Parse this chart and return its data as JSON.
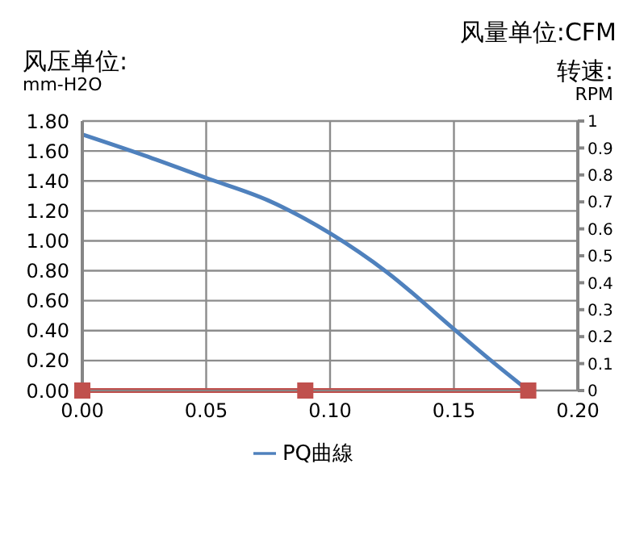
{
  "chart_data": {
    "type": "line",
    "xlabel": "风量单位:CFM",
    "ylabel": "风压单位:\nmm-H2O",
    "y2label": "转速:\nRPM",
    "series": [
      {
        "name": "PQ曲線",
        "color": "#4f81bd",
        "x": [
          0,
          0.025,
          0.05,
          0.075,
          0.1,
          0.123,
          0.15,
          0.165,
          0.18
        ],
        "values": [
          1.71,
          1.57,
          1.42,
          1.27,
          1.05,
          0.79,
          0.41,
          0.2,
          0
        ],
        "marker": "none"
      },
      {
        "color": "#c0504d",
        "axis": "y2",
        "x": [
          0,
          0.09,
          0.18
        ],
        "values": [
          0,
          0,
          0
        ],
        "marker": "square"
      }
    ],
    "xlim": [
      0,
      0.2
    ],
    "xticks": [
      {
        "value": 0,
        "label": "0.00"
      },
      {
        "value": 0.05,
        "label": "0.05"
      },
      {
        "value": 0.1,
        "label": "0.10"
      },
      {
        "value": 0.15,
        "label": "0.15"
      },
      {
        "value": 0.2,
        "label": "0.20"
      }
    ],
    "ylim": [
      0,
      1.8
    ],
    "yticks": [
      {
        "value": 0,
        "label": "0.00"
      },
      {
        "value": 0.2,
        "label": "0.20"
      },
      {
        "value": 0.4,
        "label": "0.40"
      },
      {
        "value": 0.6,
        "label": "0.60"
      },
      {
        "value": 0.8,
        "label": "0.80"
      },
      {
        "value": 1,
        "label": "1.00"
      },
      {
        "value": 1.2,
        "label": "1.20"
      },
      {
        "value": 1.4,
        "label": "1.40"
      },
      {
        "value": 1.6,
        "label": "1.60"
      },
      {
        "value": 1.8,
        "label": "1.80"
      }
    ],
    "y2lim": [
      0,
      1
    ],
    "y2ticks": [
      0,
      0.1,
      0.2,
      0.3,
      0.4,
      0.5,
      0.6,
      0.7,
      0.8,
      0.9,
      1
    ],
    "grid": true,
    "legend": "bottom",
    "line_style": "solid"
  }
}
